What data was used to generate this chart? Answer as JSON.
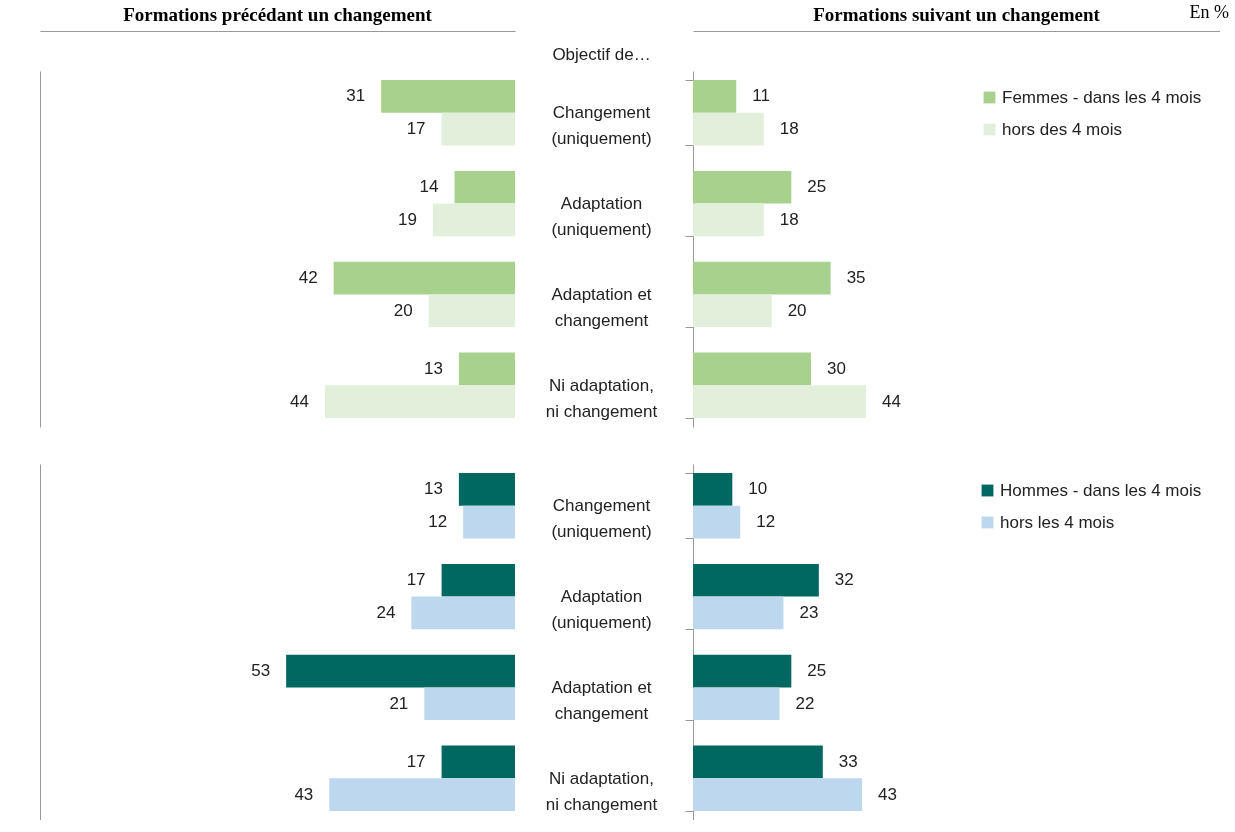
{
  "chart_data": [
    {
      "type": "bar",
      "orientation": "horizontal",
      "title": "Formations précédant un changement",
      "categories": [
        null,
        null,
        null,
        null
      ],
      "xlim": [
        110,
        0
      ],
      "tick_labels": false,
      "data_labels": true,
      "series": [
        {
          "color": "#a9d18e",
          "values": [
            31,
            14,
            42,
            13
          ]
        },
        {
          "color": "#e2efda",
          "values": [
            17,
            19,
            20,
            44
          ]
        }
      ]
    },
    {
      "type": "bar",
      "orientation": "horizontal",
      "title": "Formations suivant un changement",
      "ylabel": "Objectif de…",
      "annotations": [
        "En %"
      ],
      "categories": [
        "Changement\n(uniquement)",
        "Adaptation\n(uniquement)",
        "Adaptation et\nchangement",
        "Ni adaptation,\nni changement"
      ],
      "xlim": [
        0,
        134
      ],
      "tick_labels": "y",
      "data_labels": true,
      "legend": "top right",
      "series": [
        {
          "name": "Femmes - dans les 4 mois",
          "color": "#a9d18e",
          "values": [
            11,
            25,
            35,
            30
          ]
        },
        {
          "name": "hors des 4 mois",
          "color": "#e2efda",
          "values": [
            18,
            18,
            20,
            44
          ]
        }
      ]
    },
    {
      "type": "bar",
      "orientation": "horizontal",
      "categories": [
        null,
        null,
        null,
        null
      ],
      "xlim": [
        110,
        0
      ],
      "tick_labels": false,
      "data_labels": true,
      "series": [
        {
          "color": "#006861",
          "values": [
            13,
            17,
            53,
            17
          ]
        },
        {
          "color": "#bdd7ee",
          "values": [
            12,
            24,
            21,
            43
          ]
        }
      ]
    },
    {
      "type": "bar",
      "orientation": "horizontal",
      "categories": [
        "Changement\n(uniquement)",
        "Adaptation\n(uniquement)",
        "Adaptation et\nchangement",
        "Ni adaptation,\nni changement"
      ],
      "xlim": [
        0,
        134
      ],
      "tick_labels": "y",
      "data_labels": true,
      "legend": "top right",
      "series": [
        {
          "name": "Hommes - dans les 4 mois",
          "color": "#006861",
          "values": [
            10,
            32,
            25,
            33
          ]
        },
        {
          "name": "hors les 4 mois",
          "color": "#bdd7ee",
          "values": [
            12,
            23,
            22,
            43
          ]
        }
      ]
    }
  ]
}
